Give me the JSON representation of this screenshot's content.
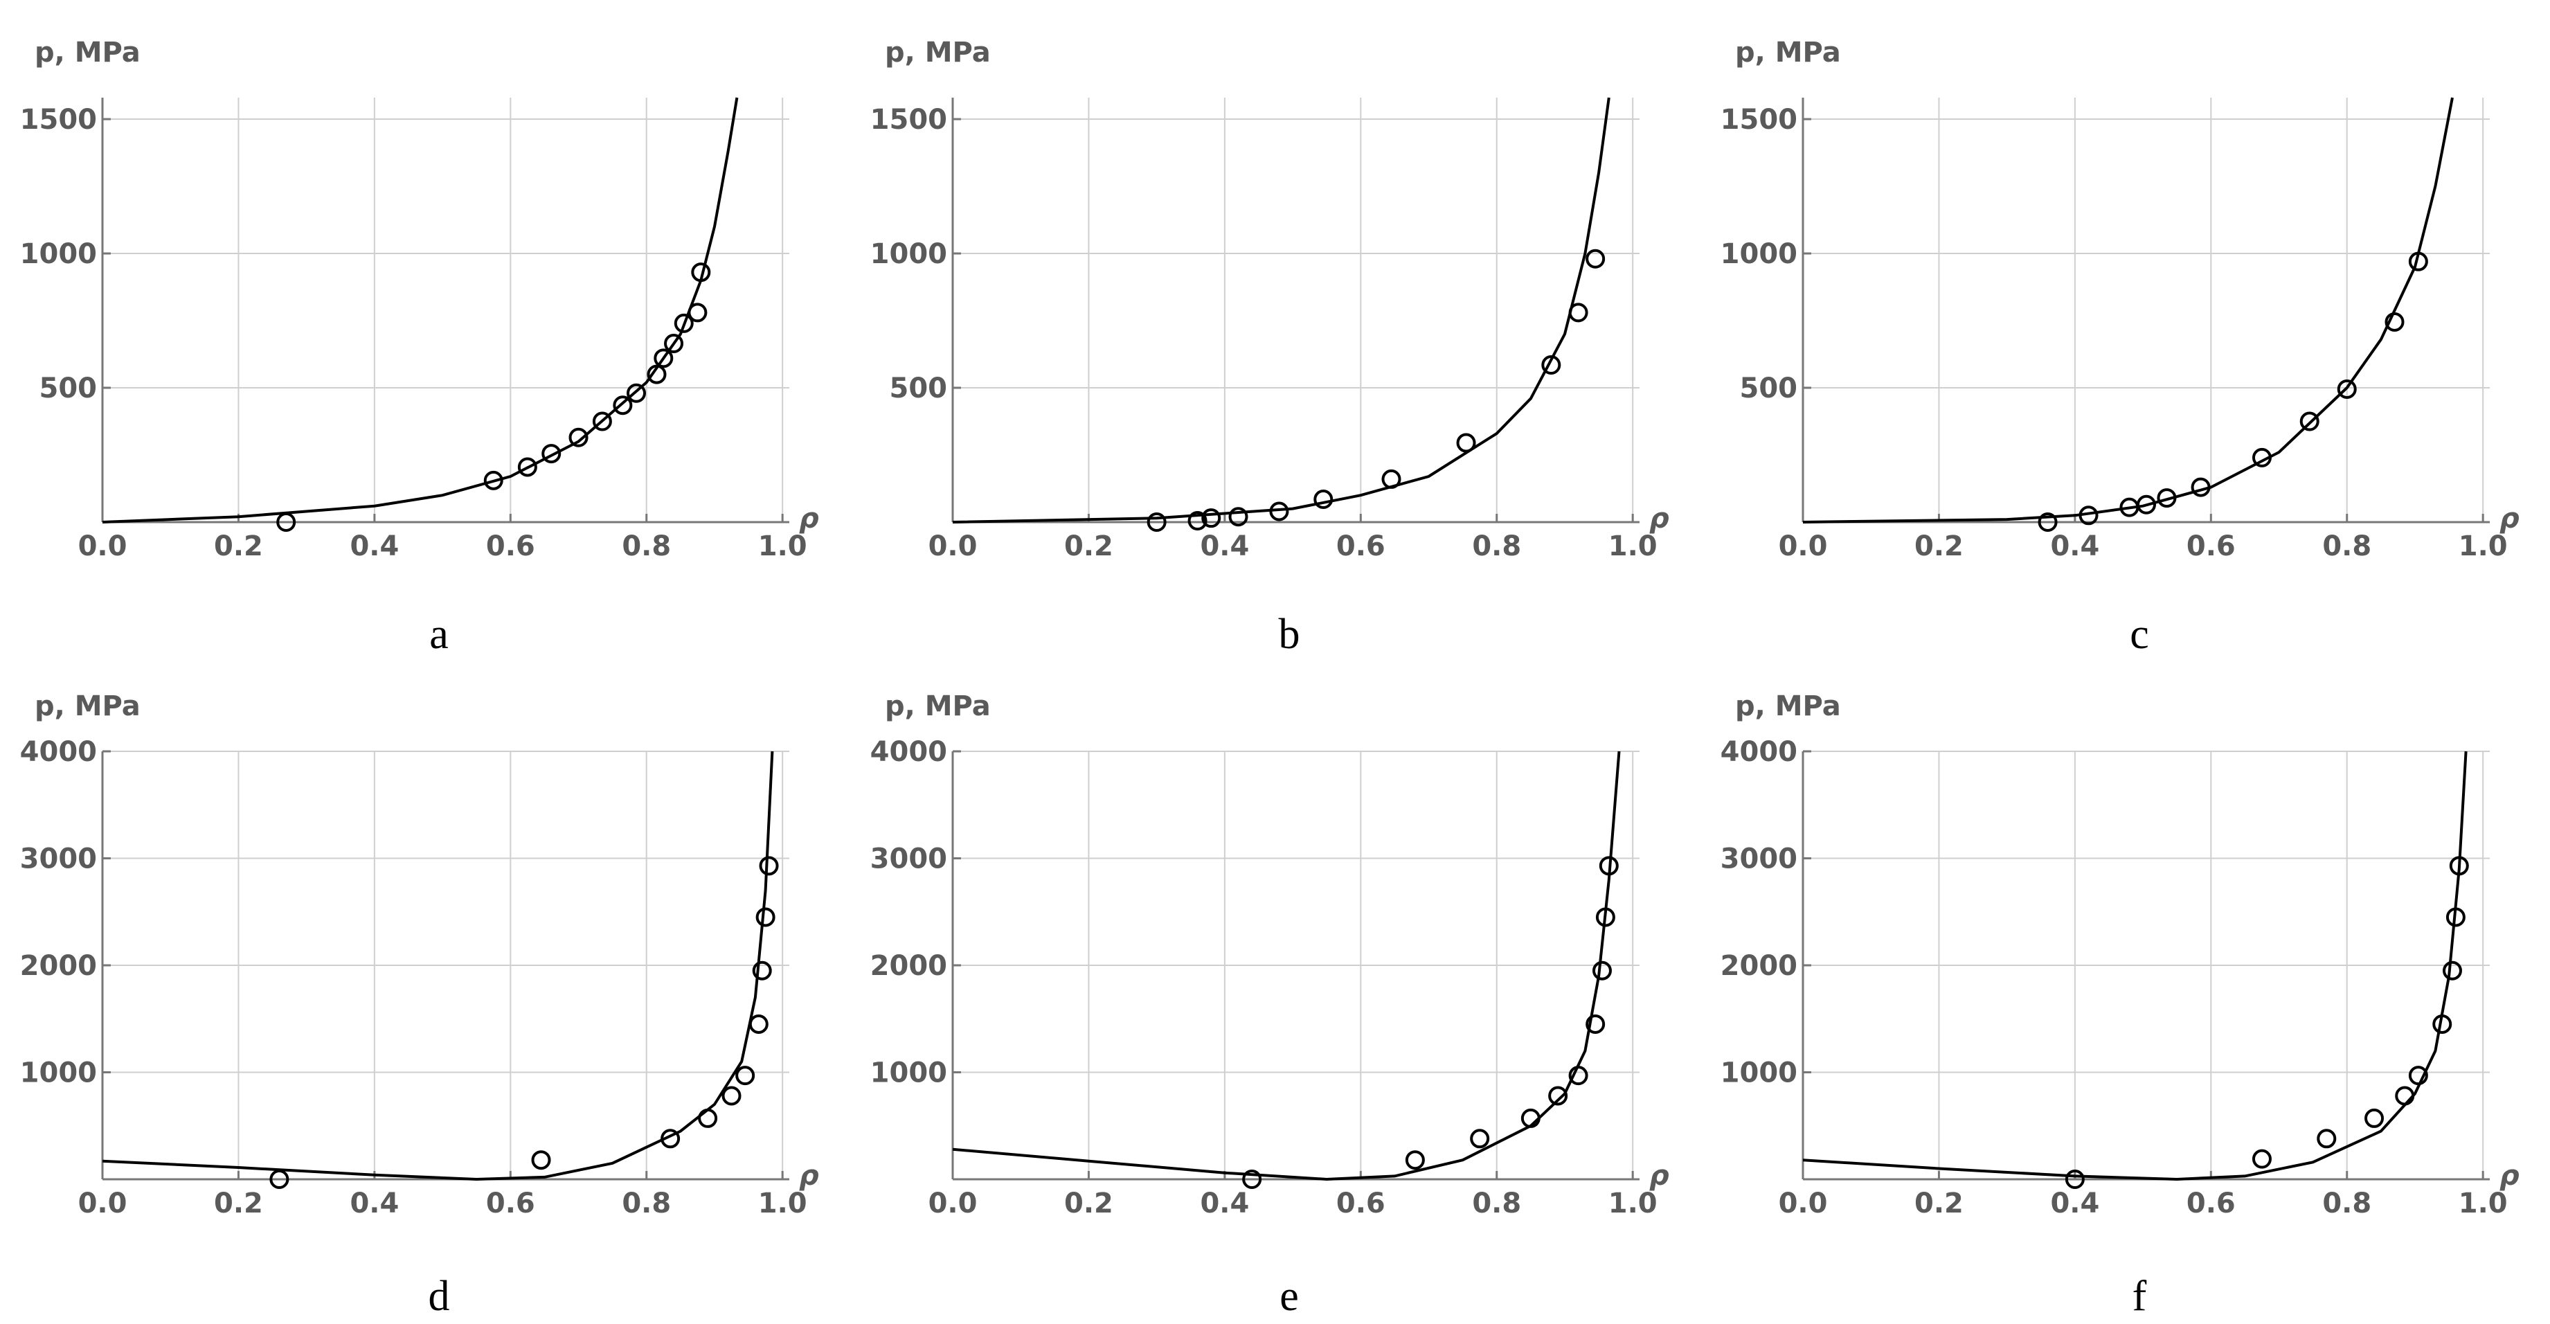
{
  "chart_data": [
    {
      "type": "scatter",
      "caption": "a",
      "x_label": "ρ",
      "y_label": "p, MPa",
      "grid": true,
      "xlim": [
        0,
        1.01
      ],
      "ylim": [
        0,
        1580
      ],
      "xticks": [
        {
          "value": 0,
          "label": "0.0"
        },
        0.2,
        0.4,
        0.6,
        0.8,
        {
          "value": 1,
          "label": "1.0"
        }
      ],
      "yticks": [
        500,
        1000,
        1500
      ],
      "points": {
        "color": "#000000",
        "x": [
          0.27,
          0.575,
          0.625,
          0.66,
          0.7,
          0.735,
          0.765,
          0.785,
          0.815,
          0.825,
          0.84,
          0.855,
          0.875,
          0.88
        ],
        "y": [
          0,
          155,
          205,
          255,
          315,
          375,
          435,
          480,
          550,
          610,
          665,
          740,
          780,
          930
        ]
      },
      "curve": {
        "color": "#000000",
        "x": [
          0,
          0.2,
          0.4,
          0.5,
          0.6,
          0.7,
          0.8,
          0.85,
          0.88,
          0.9,
          0.92,
          0.933
        ],
        "y": [
          0,
          20,
          60,
          100,
          170,
          300,
          520,
          700,
          900,
          1100,
          1380,
          1580
        ]
      }
    },
    {
      "type": "scatter",
      "caption": "b",
      "x_label": "ρ",
      "y_label": "p, MPa",
      "grid": true,
      "xlim": [
        0,
        1.01
      ],
      "ylim": [
        0,
        1580
      ],
      "xticks": [
        {
          "value": 0,
          "label": "0.0"
        },
        0.2,
        0.4,
        0.6,
        0.8,
        {
          "value": 1,
          "label": "1.0"
        }
      ],
      "yticks": [
        500,
        1000,
        1500
      ],
      "points": {
        "color": "#000000",
        "x": [
          0.3,
          0.36,
          0.38,
          0.42,
          0.48,
          0.545,
          0.645,
          0.755,
          0.88,
          0.92,
          0.945
        ],
        "y": [
          0,
          5,
          15,
          20,
          40,
          85,
          160,
          295,
          585,
          780,
          980
        ]
      },
      "curve": {
        "color": "#000000",
        "x": [
          0,
          0.3,
          0.5,
          0.6,
          0.7,
          0.8,
          0.85,
          0.9,
          0.93,
          0.95,
          0.965
        ],
        "y": [
          0,
          15,
          50,
          100,
          170,
          330,
          460,
          700,
          1000,
          1300,
          1580
        ]
      }
    },
    {
      "type": "scatter",
      "caption": "c",
      "x_label": "ρ",
      "y_label": "p, MPa",
      "grid": true,
      "xlim": [
        0,
        1.01
      ],
      "ylim": [
        0,
        1580
      ],
      "xticks": [
        {
          "value": 0,
          "label": "0.0"
        },
        0.2,
        0.4,
        0.6,
        0.8,
        {
          "value": 1,
          "label": "1.0"
        }
      ],
      "yticks": [
        500,
        1000,
        1500
      ],
      "points": {
        "color": "#000000",
        "x": [
          0.36,
          0.42,
          0.48,
          0.505,
          0.535,
          0.585,
          0.675,
          0.745,
          0.8,
          0.87,
          0.905
        ],
        "y": [
          0,
          25,
          55,
          65,
          90,
          130,
          240,
          375,
          495,
          745,
          970
        ]
      },
      "curve": {
        "color": "#000000",
        "x": [
          0,
          0.3,
          0.4,
          0.5,
          0.6,
          0.7,
          0.8,
          0.85,
          0.9,
          0.93,
          0.955
        ],
        "y": [
          0,
          10,
          25,
          60,
          130,
          260,
          500,
          680,
          950,
          1250,
          1580
        ]
      }
    },
    {
      "type": "scatter",
      "caption": "d",
      "x_label": "ρ",
      "y_label": "p, MPa",
      "grid": true,
      "xlim": [
        0,
        1.01
      ],
      "ylim": [
        0,
        4000
      ],
      "xticks": [
        {
          "value": 0,
          "label": "0.0"
        },
        0.2,
        0.4,
        0.6,
        0.8,
        {
          "value": 1,
          "label": "1.0"
        }
      ],
      "yticks": [
        1000,
        2000,
        3000,
        4000
      ],
      "points": {
        "color": "#000000",
        "x": [
          0.26,
          0.645,
          0.835,
          0.89,
          0.925,
          0.945,
          0.965,
          0.97,
          0.975,
          0.98
        ],
        "y": [
          0,
          180,
          380,
          570,
          780,
          970,
          1450,
          1950,
          2450,
          2930
        ]
      },
      "curve": {
        "color": "#000000",
        "x": [
          0,
          0.2,
          0.4,
          0.55,
          0.65,
          0.75,
          0.85,
          0.9,
          0.94,
          0.96,
          0.975,
          0.985
        ],
        "y": [
          170,
          110,
          40,
          0,
          20,
          150,
          450,
          700,
          1100,
          1700,
          2700,
          4000
        ]
      }
    },
    {
      "type": "scatter",
      "caption": "e",
      "x_label": "ρ",
      "y_label": "p, MPa",
      "grid": true,
      "xlim": [
        0,
        1.01
      ],
      "ylim": [
        0,
        4000
      ],
      "xticks": [
        {
          "value": 0,
          "label": "0.0"
        },
        0.2,
        0.4,
        0.6,
        0.8,
        {
          "value": 1,
          "label": "1.0"
        }
      ],
      "yticks": [
        1000,
        2000,
        3000,
        4000
      ],
      "points": {
        "color": "#000000",
        "x": [
          0.44,
          0.68,
          0.775,
          0.85,
          0.89,
          0.92,
          0.945,
          0.955,
          0.96,
          0.965
        ],
        "y": [
          0,
          180,
          380,
          570,
          780,
          970,
          1450,
          1950,
          2450,
          2930
        ]
      },
      "curve": {
        "color": "#000000",
        "x": [
          0,
          0.2,
          0.4,
          0.55,
          0.65,
          0.75,
          0.85,
          0.9,
          0.93,
          0.95,
          0.965,
          0.98
        ],
        "y": [
          280,
          170,
          60,
          0,
          30,
          180,
          500,
          800,
          1200,
          1900,
          2800,
          4000
        ]
      }
    },
    {
      "type": "scatter",
      "caption": "f",
      "x_label": "ρ",
      "y_label": "p, MPa",
      "grid": true,
      "xlim": [
        0,
        1.01
      ],
      "ylim": [
        0,
        4000
      ],
      "xticks": [
        {
          "value": 0,
          "label": "0.0"
        },
        0.2,
        0.4,
        0.6,
        0.8,
        {
          "value": 1,
          "label": "1.0"
        }
      ],
      "yticks": [
        1000,
        2000,
        3000,
        4000
      ],
      "points": {
        "color": "#000000",
        "x": [
          0.4,
          0.675,
          0.77,
          0.84,
          0.885,
          0.905,
          0.94,
          0.955,
          0.96,
          0.965
        ],
        "y": [
          0,
          190,
          380,
          570,
          780,
          970,
          1450,
          1950,
          2450,
          2930
        ]
      },
      "curve": {
        "color": "#000000",
        "x": [
          0,
          0.2,
          0.4,
          0.55,
          0.65,
          0.75,
          0.85,
          0.9,
          0.93,
          0.95,
          0.965,
          0.975
        ],
        "y": [
          180,
          100,
          30,
          0,
          30,
          160,
          450,
          800,
          1200,
          1900,
          2900,
          4000
        ]
      }
    }
  ]
}
